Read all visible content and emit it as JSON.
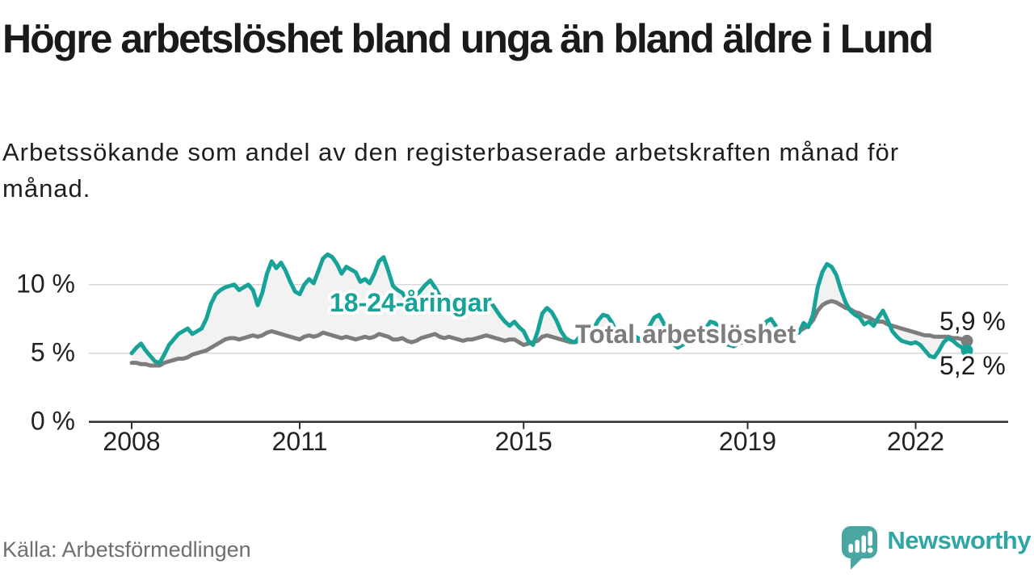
{
  "header": {
    "title": "Högre arbetslöshet bland unga än bland äldre i Lund",
    "subtitle": "Arbetssökande som andel av den registerbaserade arbetskraften månad för månad."
  },
  "footer": {
    "source": "Källa: Arbetsförmedlingen",
    "logo_text": "Newsworthy"
  },
  "colors": {
    "series-young": "#17a398",
    "series-total": "#7d7d7d",
    "band": "#f2f2f2",
    "grid": "#d8d8d8",
    "axis": "#2f2f2f",
    "text-dark": "#1a1a1a",
    "text-muted": "#6f6f6f",
    "logo-teal": "#4aa6a1",
    "logo-text": "#2ea6a6"
  },
  "chart_data": {
    "type": "line",
    "title": "Högre arbetslöshet bland unga än bland äldre i Lund",
    "unit": "%",
    "x_axis": {
      "unit": "month",
      "start_year": 2008,
      "range": [
        "2008-01",
        "2022-12"
      ],
      "ticks": [
        {
          "year": 2008,
          "label": "2008"
        },
        {
          "year": 2011,
          "label": "2011"
        },
        {
          "year": 2015,
          "label": "2015"
        },
        {
          "year": 2019,
          "label": "2019"
        },
        {
          "year": 2022,
          "label": "2022"
        }
      ]
    },
    "y_axis": {
      "unit": "%",
      "min": 0,
      "max": 12.5,
      "grid": true,
      "ticks": [
        {
          "value": 0,
          "label": "0 %"
        },
        {
          "value": 5,
          "label": "5 %"
        },
        {
          "value": 10,
          "label": "10 %"
        }
      ]
    },
    "legend_position": "inline-labels",
    "series": [
      {
        "id": "young",
        "label": "18-24-åringar",
        "color": "#17a398",
        "latest_value": 5.2,
        "values": [
          5.0,
          5.4,
          5.7,
          5.2,
          4.8,
          4.4,
          4.3,
          4.9,
          5.6,
          6.0,
          6.4,
          6.6,
          6.8,
          6.4,
          6.6,
          6.8,
          7.5,
          8.6,
          9.3,
          9.6,
          9.8,
          9.9,
          10.0,
          9.6,
          9.8,
          10.0,
          9.6,
          8.5,
          9.4,
          10.8,
          11.7,
          11.2,
          11.6,
          11.0,
          10.2,
          9.5,
          9.3,
          10.0,
          10.4,
          10.1,
          11.0,
          11.9,
          12.2,
          12.0,
          11.5,
          10.8,
          11.3,
          11.1,
          10.9,
          10.2,
          10.4,
          10.1,
          10.8,
          11.7,
          12.0,
          11.0,
          9.9,
          9.6,
          9.4,
          8.9,
          9.3,
          9.2,
          9.6,
          10.0,
          10.3,
          9.8,
          9.2,
          8.9,
          9.1,
          8.5,
          8.0,
          7.8,
          8.4,
          8.1,
          8.5,
          8.8,
          8.9,
          8.7,
          8.2,
          7.7,
          7.3,
          7.0,
          7.3,
          6.9,
          6.6,
          5.9,
          5.6,
          6.6,
          7.9,
          8.3,
          8.0,
          7.4,
          6.6,
          6.1,
          5.9,
          5.8,
          6.2,
          6.0,
          6.3,
          6.8,
          7.4,
          7.8,
          7.7,
          7.2,
          6.4,
          5.9,
          5.7,
          5.9,
          6.2,
          6.0,
          6.4,
          7.0,
          7.6,
          7.8,
          7.2,
          6.4,
          5.7,
          5.4,
          5.6,
          5.8,
          6.2,
          6.0,
          6.3,
          6.8,
          7.3,
          7.2,
          6.8,
          6.1,
          5.6,
          5.5,
          5.7,
          5.9,
          6.0,
          5.8,
          6.2,
          6.7,
          7.3,
          7.5,
          7.0,
          6.4,
          6.2,
          6.5,
          6.8,
          6.5,
          7.2,
          6.9,
          7.8,
          9.8,
          10.9,
          11.5,
          11.3,
          10.7,
          9.6,
          8.7,
          8.1,
          7.8,
          7.6,
          7.1,
          7.3,
          7.0,
          7.6,
          8.1,
          7.4,
          6.6,
          6.2,
          5.9,
          5.8,
          5.7,
          5.8,
          5.6,
          5.2,
          4.8,
          4.7,
          5.2,
          5.8,
          6.1,
          5.9,
          5.6,
          5.4,
          5.2
        ]
      },
      {
        "id": "total",
        "label": "Total arbetslöshet",
        "color": "#7d7d7d",
        "latest_value": 5.9,
        "values": [
          4.3,
          4.3,
          4.2,
          4.2,
          4.1,
          4.1,
          4.1,
          4.3,
          4.4,
          4.5,
          4.6,
          4.6,
          4.7,
          4.9,
          5.0,
          5.1,
          5.2,
          5.4,
          5.6,
          5.8,
          6.0,
          6.1,
          6.1,
          6.0,
          6.1,
          6.2,
          6.3,
          6.2,
          6.3,
          6.5,
          6.6,
          6.5,
          6.4,
          6.3,
          6.2,
          6.1,
          6.0,
          6.2,
          6.3,
          6.2,
          6.3,
          6.5,
          6.4,
          6.3,
          6.2,
          6.1,
          6.2,
          6.1,
          6.0,
          6.1,
          6.2,
          6.1,
          6.2,
          6.4,
          6.3,
          6.2,
          6.0,
          6.0,
          6.1,
          5.9,
          5.8,
          5.9,
          6.1,
          6.2,
          6.3,
          6.4,
          6.2,
          6.1,
          6.2,
          6.1,
          6.0,
          5.9,
          6.0,
          6.0,
          6.1,
          6.2,
          6.3,
          6.2,
          6.1,
          6.0,
          5.9,
          6.0,
          6.0,
          5.8,
          5.6,
          5.7,
          5.8,
          5.9,
          6.2,
          6.3,
          6.2,
          6.1,
          6.0,
          5.9,
          5.8,
          5.8,
          5.9,
          6.0,
          6.1,
          6.1,
          6.2,
          6.3,
          6.2,
          6.1,
          6.0,
          5.9,
          5.8,
          5.8,
          5.9,
          5.9,
          6.0,
          6.1,
          6.2,
          6.1,
          6.0,
          5.8,
          5.7,
          5.6,
          5.7,
          5.8,
          5.9,
          5.9,
          6.0,
          6.1,
          6.2,
          6.1,
          5.9,
          5.7,
          5.6,
          5.6,
          5.7,
          5.8,
          5.8,
          5.8,
          5.9,
          6.0,
          6.1,
          6.1,
          6.0,
          5.9,
          6.0,
          6.2,
          6.4,
          6.6,
          6.8,
          7.0,
          7.4,
          8.1,
          8.5,
          8.7,
          8.8,
          8.7,
          8.5,
          8.3,
          8.2,
          8.0,
          7.9,
          7.7,
          7.6,
          7.4,
          7.3,
          7.3,
          7.1,
          7.0,
          6.9,
          6.8,
          6.7,
          6.6,
          6.5,
          6.4,
          6.3,
          6.3,
          6.2,
          6.2,
          6.2,
          6.2,
          6.1,
          6.1,
          6.0,
          5.9
        ]
      }
    ],
    "annotations": [
      {
        "text": "5,9 %",
        "series": "total"
      },
      {
        "text": "5,2 %",
        "series": "young"
      }
    ]
  }
}
